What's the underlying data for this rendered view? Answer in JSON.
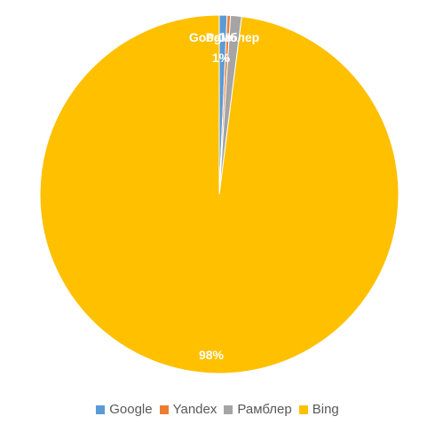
{
  "chart_data": {
    "type": "pie",
    "categories": [
      "Google",
      "Yandex",
      "Рамблер",
      "Bing"
    ],
    "values": [
      0.7,
      0.3,
      1,
      98
    ],
    "data_labels": [
      {
        "category": "Google",
        "category_text": "Google",
        "value_text": "1%"
      },
      {
        "category": "Yandex",
        "category_text": "",
        "value_text": "0%"
      },
      {
        "category": "Рамблер",
        "category_text": "Рамблер",
        "value_text": "1%"
      },
      {
        "category": "Bing",
        "category_text": "",
        "value_text": "98%"
      }
    ],
    "colors": [
      "#5B9BD5",
      "#ED7D31",
      "#A5A5A5",
      "#FFC000"
    ],
    "legend_position": "bottom",
    "title": ""
  }
}
